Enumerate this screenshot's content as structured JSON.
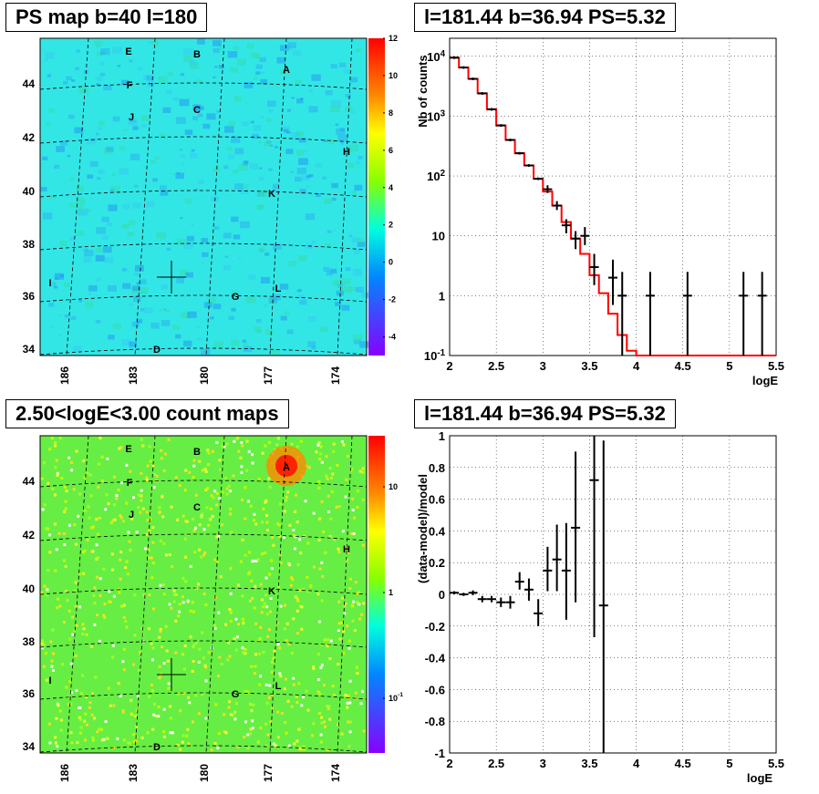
{
  "panels": {
    "map_top": {
      "title": "PS map b=40 l=180"
    },
    "spec_top": {
      "title": "l=181.44 b=36.94 PS=5.32"
    },
    "map_bottom": {
      "title": "2.50<logE<3.00 count maps"
    },
    "spec_bottom": {
      "title": "l=181.44 b=36.94 PS=5.32"
    }
  },
  "chart_data": [
    {
      "type": "heatmap",
      "title": "PS map b=40 l=180",
      "x_ticks": [
        "186",
        "183",
        "180",
        "177",
        "174"
      ],
      "y_ticks": [
        "34",
        "36",
        "38",
        "40",
        "42",
        "44"
      ],
      "colorbar_ticks": [
        "12",
        "10",
        "8",
        "6",
        "4",
        "2",
        "0",
        "-2",
        "-4"
      ],
      "colorbar_range": [
        -5,
        12
      ],
      "sources": [
        "A",
        "B",
        "C",
        "D",
        "E",
        "F",
        "G",
        "H",
        "I",
        "J",
        "K",
        "L"
      ],
      "marker": {
        "l": 181.44,
        "b": 36.94
      },
      "colors": {
        "background": "#33e6e6"
      }
    },
    {
      "type": "line",
      "title": "l=181.44 b=36.94 PS=5.32",
      "xlabel": "logE",
      "ylabel": "Nb of counts",
      "xlim": [
        2,
        5.5
      ],
      "ylim": [
        0.1,
        20000
      ],
      "yscale": "log",
      "x_ticks": [
        "2",
        "2.5",
        "3",
        "3.5",
        "4",
        "4.5",
        "5",
        "5.5"
      ],
      "y_ticks": [
        "10^-1",
        "1",
        "10",
        "10^2",
        "10^3",
        "10^4"
      ],
      "grid": true,
      "model": {
        "color": "#ff0000",
        "edges": [
          2.0,
          2.1,
          2.2,
          2.3,
          2.4,
          2.5,
          2.6,
          2.7,
          2.8,
          2.9,
          3.0,
          3.1,
          3.2,
          3.3,
          3.4,
          3.5,
          3.6,
          3.7,
          3.8,
          3.9,
          4.0,
          5.5
        ],
        "values": [
          9500,
          6500,
          4200,
          2400,
          1300,
          700,
          400,
          240,
          150,
          90,
          55,
          32,
          17,
          9,
          5,
          2.2,
          1.1,
          0.5,
          0.22,
          0.12,
          0.1
        ]
      },
      "data_points": [
        {
          "x": 3.05,
          "y": 60,
          "lo": 52,
          "hi": 70
        },
        {
          "x": 3.15,
          "y": 32,
          "lo": 27,
          "hi": 38
        },
        {
          "x": 3.25,
          "y": 15,
          "lo": 11,
          "hi": 19
        },
        {
          "x": 3.35,
          "y": 9,
          "lo": 6,
          "hi": 12
        },
        {
          "x": 3.45,
          "y": 10,
          "lo": 7,
          "hi": 14
        },
        {
          "x": 3.55,
          "y": 3,
          "lo": 1.5,
          "hi": 5
        },
        {
          "x": 3.75,
          "y": 2,
          "lo": 0.7,
          "hi": 4
        },
        {
          "x": 3.85,
          "y": 1,
          "lo": 0.1,
          "hi": 2.5
        },
        {
          "x": 4.15,
          "y": 1,
          "lo": 0.1,
          "hi": 2.5
        },
        {
          "x": 4.55,
          "y": 1,
          "lo": 0.1,
          "hi": 2.5
        },
        {
          "x": 5.15,
          "y": 1,
          "lo": 0.1,
          "hi": 2.5
        },
        {
          "x": 5.35,
          "y": 1,
          "lo": 0.1,
          "hi": 2.5
        }
      ]
    },
    {
      "type": "heatmap",
      "title": "2.50<logE<3.00 count maps",
      "x_ticks": [
        "186",
        "183",
        "180",
        "177",
        "174"
      ],
      "y_ticks": [
        "34",
        "36",
        "38",
        "40",
        "42",
        "44"
      ],
      "colorbar_ticks": [
        "10",
        "1",
        "10^-1"
      ],
      "colorbar_scale": "log",
      "sources": [
        "A",
        "B",
        "C",
        "D",
        "E",
        "F",
        "G",
        "H",
        "I",
        "J",
        "K",
        "L"
      ],
      "marker": {
        "l": 181.44,
        "b": 36.94
      },
      "colors": {
        "background": "#66ee44"
      }
    },
    {
      "type": "scatter",
      "title": "l=181.44 b=36.94 PS=5.32",
      "xlabel": "logE",
      "ylabel": "(data-model)/model",
      "xlim": [
        2,
        5.5
      ],
      "ylim": [
        -1,
        1
      ],
      "x_ticks": [
        "2",
        "2.5",
        "3",
        "3.5",
        "4",
        "4.5",
        "5",
        "5.5"
      ],
      "y_ticks": [
        "-1",
        "-0.8",
        "-0.6",
        "-0.4",
        "-0.2",
        "0",
        "0.2",
        "0.4",
        "0.6",
        "0.8",
        "1"
      ],
      "grid": true,
      "points": [
        {
          "x": 2.05,
          "y": 0.01,
          "lo": 0.0,
          "hi": 0.02
        },
        {
          "x": 2.15,
          "y": 0.0,
          "lo": -0.01,
          "hi": 0.01
        },
        {
          "x": 2.25,
          "y": 0.01,
          "lo": -0.005,
          "hi": 0.025
        },
        {
          "x": 2.35,
          "y": -0.03,
          "lo": -0.05,
          "hi": -0.01
        },
        {
          "x": 2.45,
          "y": -0.03,
          "lo": -0.05,
          "hi": -0.01
        },
        {
          "x": 2.55,
          "y": -0.05,
          "lo": -0.08,
          "hi": -0.02
        },
        {
          "x": 2.65,
          "y": -0.05,
          "lo": -0.09,
          "hi": -0.01
        },
        {
          "x": 2.75,
          "y": 0.08,
          "lo": 0.03,
          "hi": 0.14
        },
        {
          "x": 2.85,
          "y": 0.03,
          "lo": -0.04,
          "hi": 0.1
        },
        {
          "x": 2.95,
          "y": -0.12,
          "lo": -0.2,
          "hi": -0.03
        },
        {
          "x": 3.05,
          "y": 0.15,
          "lo": 0.02,
          "hi": 0.3
        },
        {
          "x": 3.15,
          "y": 0.22,
          "lo": 0.02,
          "hi": 0.44
        },
        {
          "x": 3.25,
          "y": 0.15,
          "lo": -0.16,
          "hi": 0.45
        },
        {
          "x": 3.35,
          "y": 0.42,
          "lo": -0.05,
          "hi": 0.9
        },
        {
          "x": 3.55,
          "y": 0.72,
          "lo": -0.27,
          "hi": 1.0
        },
        {
          "x": 3.65,
          "y": -0.07,
          "lo": -1.0,
          "hi": 0.97
        }
      ]
    }
  ]
}
